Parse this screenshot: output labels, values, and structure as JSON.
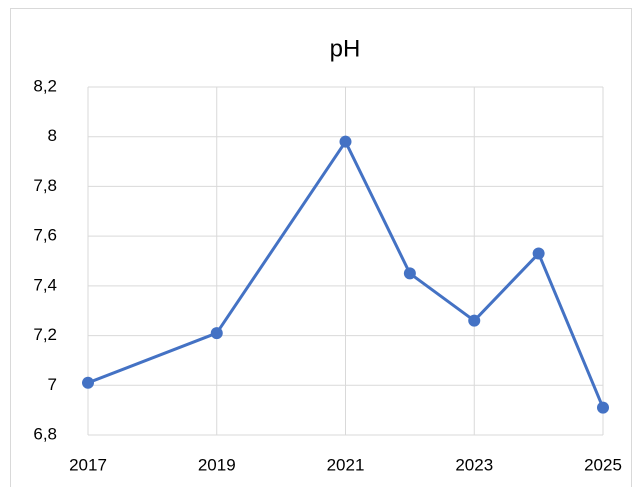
{
  "chart_data": {
    "type": "line",
    "title": "pH",
    "x": [
      2017,
      2019,
      2021,
      2022,
      2023,
      2024,
      2025
    ],
    "series": [
      {
        "name": "pH",
        "color": "#4472c4",
        "values": [
          7.01,
          7.21,
          7.98,
          7.45,
          7.26,
          7.53,
          6.91
        ]
      }
    ],
    "xlim": [
      2017,
      2025
    ],
    "xticks": [
      2017,
      2019,
      2021,
      2023,
      2025
    ],
    "ylim": [
      6.8,
      8.2
    ],
    "yticks": [
      {
        "value": 6.8,
        "label": "6,8"
      },
      7,
      {
        "value": 7.2,
        "label": "7,2"
      },
      {
        "value": 7.4,
        "label": "7,4"
      },
      {
        "value": 7.6,
        "label": "7,6"
      },
      {
        "value": 7.8,
        "label": "7,8"
      },
      8,
      {
        "value": 8.2,
        "label": "8,2"
      }
    ],
    "grid": true,
    "legend": false
  }
}
